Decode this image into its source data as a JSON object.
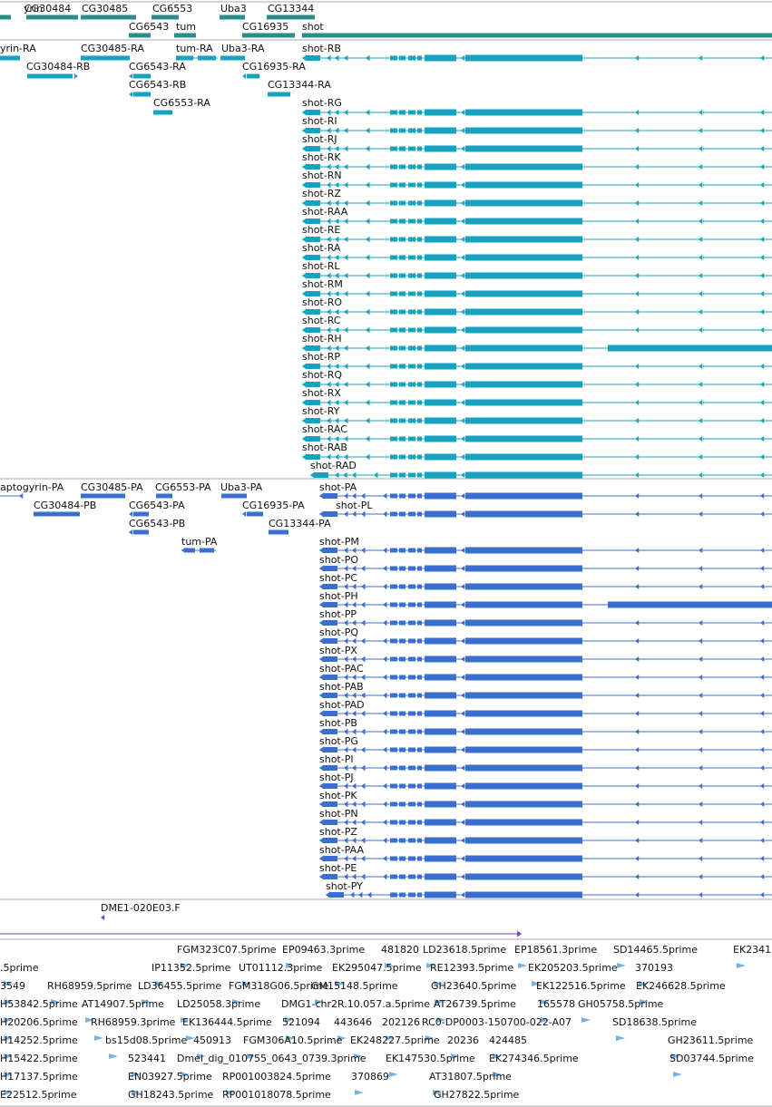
{
  "colors": {
    "gene": "#2e8b8b",
    "mrna": "#16a3c2",
    "protein": "#3b6fcf",
    "est_fwd": "#7d3fb3",
    "est": "#79b2dc",
    "separator": "#a9a9a9"
  },
  "tracks": {
    "gene": {
      "top": [
        {
          "label": "yrin"
        },
        {
          "label": "CG30484"
        },
        {
          "label": "CG30485"
        },
        {
          "label": "CG6553"
        },
        {
          "label": "Uba3"
        },
        {
          "label": "CG13344"
        }
      ],
      "bottom": [
        {
          "label": "CG6543"
        },
        {
          "label": "tum"
        },
        {
          "label": "CG16935"
        },
        {
          "label": "shot"
        }
      ]
    },
    "mrna": {
      "small": [
        {
          "label": "yrin-RA"
        },
        {
          "label": "CG30485-RA"
        },
        {
          "label": "tum-RA"
        },
        {
          "label": "Uba3-RA"
        },
        {
          "label": "CG30484-RB"
        },
        {
          "label": "CG6543-RA"
        },
        {
          "label": "CG16935-RA"
        },
        {
          "label": "CG6543-RB"
        },
        {
          "label": "CG13344-RA"
        },
        {
          "label": "CG6553-RA"
        }
      ],
      "shot": [
        "shot-RB",
        "shot-RG",
        "shot-RI",
        "shot-RJ",
        "shot-RK",
        "shot-RN",
        "shot-RZ",
        "shot-RAA",
        "shot-RE",
        "shot-RA",
        "shot-RL",
        "shot-RM",
        "shot-RO",
        "shot-RC",
        "shot-RH",
        "shot-RP",
        "shot-RQ",
        "shot-RX",
        "shot-RY",
        "shot-RAC",
        "shot-RAB",
        "shot-RAD"
      ]
    },
    "protein": {
      "small": [
        {
          "label": "aptogyrin-PA"
        },
        {
          "label": "CG30485-PA"
        },
        {
          "label": "CG6553-PA"
        },
        {
          "label": "Uba3-PA"
        },
        {
          "label": "CG30484-PB"
        },
        {
          "label": "CG6543-PA"
        },
        {
          "label": "CG16935-PA"
        },
        {
          "label": "CG6543-PB"
        },
        {
          "label": "CG13344-PA"
        },
        {
          "label": "tum-PA"
        }
      ],
      "shot": [
        "shot-PA",
        "shot-PL",
        "shot-PM",
        "shot-PO",
        "shot-PC",
        "shot-PH",
        "shot-PP",
        "shot-PQ",
        "shot-PX",
        "shot-PAC",
        "shot-PAB",
        "shot-PAD",
        "shot-PB",
        "shot-PG",
        "shot-PI",
        "shot-PJ",
        "shot-PK",
        "shot-PN",
        "shot-PZ",
        "shot-PAA",
        "shot-PE",
        "shot-PY"
      ]
    },
    "est_single": {
      "label": "DME1-020E03.F"
    },
    "est_rows": [
      [
        "FGM323C07.5prime",
        "EP09463.3prime",
        "481820",
        "LD23618.5prime",
        "EP18561.3prime",
        "SD14465.5prime",
        "EK2341"
      ],
      [
        ".5prime",
        "IP11352.5prime",
        "UT01112.3prime",
        "EK295047.5prime",
        "RE12393.5prime",
        "EK205203.5prime",
        "370193"
      ],
      [
        "3549",
        "RH68959.5prime",
        "LD36455.5prime",
        "FGM318G06.5prime",
        "GM15148.5prime",
        "GH23640.5prime",
        "EK122516.5prime",
        "EK246628.5prime"
      ],
      [
        "H53842.5prime",
        "AT14907.5prime",
        "LD25058.3prime",
        "DMG1-chr2R.10.057.a.5prime",
        "AT26739.5prime",
        "165578",
        "GH05758.5prime"
      ],
      [
        "H20206.5prime",
        "RH68959.3prime",
        "EK136444.5prime",
        "521094",
        "443646",
        "202126",
        "RC0-DP0003-150700-022-A07",
        "SD18638.5prime"
      ],
      [
        "H14252.5prime",
        "bs15d08.5prime",
        "450913",
        "FGM306A10.5prime",
        "EK248227.5prime",
        "20236",
        "424485",
        "GH23611.5prime"
      ],
      [
        "H15422.5prime",
        "523441",
        "Dmel_dig_010755_0643_0739.3prime",
        "EK147530.5prime",
        "EK274346.5prime",
        "SD03744.5prime"
      ],
      [
        "H17137.5prime",
        "EN03927.5prime",
        "RP001003824.5prime",
        "370869",
        "AT31807.5prime"
      ],
      [
        "E22512.5prime",
        "GH18243.5prime",
        "RP001018078.5prime",
        "GH27822.5prime"
      ]
    ]
  }
}
